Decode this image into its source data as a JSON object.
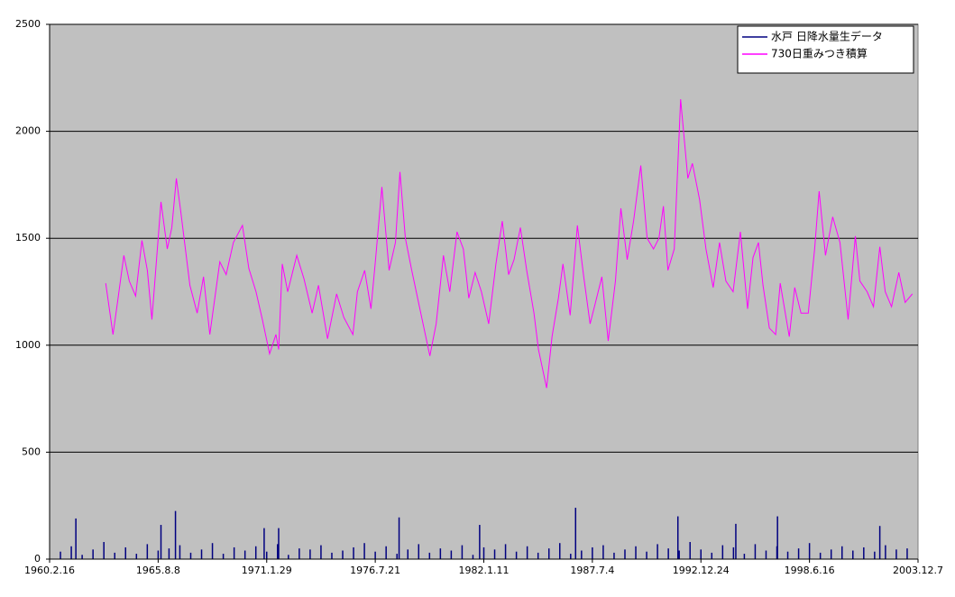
{
  "chart_data": {
    "type": "line",
    "xlim": [
      0,
      16000
    ],
    "xticks": [
      {
        "value": 0,
        "label": "1960.2.16"
      },
      {
        "value": 2000,
        "label": "1965.8.8"
      },
      {
        "value": 4000,
        "label": "1971.1.29"
      },
      {
        "value": 6000,
        "label": "1976.7.21"
      },
      {
        "value": 8000,
        "label": "1982.1.11"
      },
      {
        "value": 10000,
        "label": "1987.7.4"
      },
      {
        "value": 12000,
        "label": "1992.12.24"
      },
      {
        "value": 14000,
        "label": "1998.6.16"
      },
      {
        "value": 16000,
        "label": "2003.12.7"
      }
    ],
    "ylim": [
      0,
      2500
    ],
    "yticks": [
      0,
      500,
      1000,
      1500,
      2000,
      2500
    ],
    "grid": true,
    "legend": "top-right",
    "series": [
      {
        "name": "水戸 日降水量生データ",
        "color": "#000080",
        "type": "bar",
        "x": [
          200,
          400,
          600,
          800,
          1000,
          1200,
          1400,
          1600,
          1800,
          2000,
          2200,
          2400,
          2600,
          2800,
          3000,
          3200,
          3400,
          3600,
          3800,
          4000,
          4200,
          4400,
          4600,
          4800,
          5000,
          5200,
          5400,
          5600,
          5800,
          6000,
          6200,
          6400,
          6600,
          6800,
          7000,
          7200,
          7400,
          7600,
          7800,
          8000,
          8200,
          8400,
          8600,
          8800,
          9000,
          9200,
          9400,
          9600,
          9800,
          10000,
          10200,
          10400,
          10600,
          10800,
          11000,
          11200,
          11400,
          11600,
          11800,
          12000,
          12200,
          12400,
          12600,
          12800,
          13000,
          13200,
          13400,
          13600,
          13800,
          14000,
          14200,
          14400,
          14600,
          14800,
          15000,
          15200,
          15400,
          15600,
          15800,
          484,
          2052,
          2319,
          3953,
          4220,
          6439,
          7923,
          9691,
          11576,
          12643,
          13411,
          15296
        ],
        "values": [
          35,
          60,
          20,
          45,
          80,
          30,
          55,
          25,
          70,
          40,
          50,
          65,
          30,
          45,
          75,
          25,
          55,
          40,
          60,
          35,
          70,
          20,
          50,
          45,
          65,
          30,
          40,
          55,
          75,
          35,
          60,
          25,
          45,
          70,
          30,
          50,
          40,
          65,
          20,
          55,
          45,
          70,
          35,
          60,
          30,
          50,
          75,
          25,
          40,
          55,
          65,
          30,
          45,
          60,
          35,
          70,
          50,
          40,
          80,
          45,
          30,
          65,
          55,
          25,
          70,
          40,
          60,
          35,
          50,
          75,
          30,
          45,
          60,
          40,
          55,
          35,
          65,
          45,
          50,
          190,
          160,
          225,
          145,
          145,
          195,
          160,
          240,
          200,
          165,
          200,
          155
        ]
      },
      {
        "name": "730日重みつき積算",
        "color": "#ff00ff",
        "x": [
          1034,
          1168,
          1251,
          1368,
          1468,
          1585,
          1701,
          1801,
          1885,
          2052,
          2168,
          2252,
          2335,
          2419,
          2585,
          2719,
          2836,
          2952,
          3136,
          3253,
          3386,
          3553,
          3670,
          3803,
          3920,
          4053,
          4170,
          4220,
          4287,
          4387,
          4554,
          4687,
          4837,
          4954,
          5121,
          5288,
          5421,
          5588,
          5671,
          5805,
          5921,
          6005,
          6122,
          6255,
          6372,
          6455,
          6555,
          6672,
          6839,
          7006,
          7122,
          7256,
          7373,
          7506,
          7623,
          7723,
          7840,
          7956,
          8090,
          8223,
          8340,
          8457,
          8557,
          8674,
          8790,
          8924,
          9007,
          9157,
          9257,
          9374,
          9458,
          9591,
          9724,
          9841,
          9958,
          10058,
          10175,
          10292,
          10425,
          10525,
          10642,
          10759,
          10892,
          11009,
          11126,
          11226,
          11309,
          11392,
          11509,
          11626,
          11759,
          11843,
          11976,
          12093,
          12226,
          12343,
          12460,
          12593,
          12727,
          12860,
          12960,
          13060,
          13144,
          13261,
          13377,
          13461,
          13628,
          13728,
          13844,
          13978,
          14095,
          14178,
          14295,
          14428,
          14562,
          14712,
          14845,
          14929,
          15062,
          15179,
          15296,
          15396,
          15512,
          15646,
          15763,
          15896
        ],
        "values": [
          1290,
          1050,
          1200,
          1420,
          1300,
          1230,
          1490,
          1350,
          1120,
          1670,
          1450,
          1550,
          1780,
          1620,
          1280,
          1150,
          1320,
          1050,
          1390,
          1330,
          1480,
          1560,
          1360,
          1250,
          1120,
          960,
          1050,
          980,
          1380,
          1250,
          1420,
          1310,
          1150,
          1280,
          1030,
          1240,
          1130,
          1050,
          1250,
          1350,
          1170,
          1400,
          1740,
          1350,
          1480,
          1810,
          1500,
          1350,
          1150,
          950,
          1100,
          1420,
          1250,
          1530,
          1450,
          1220,
          1340,
          1250,
          1100,
          1380,
          1580,
          1330,
          1400,
          1550,
          1350,
          1150,
          980,
          800,
          1040,
          1220,
          1380,
          1140,
          1560,
          1320,
          1100,
          1200,
          1320,
          1020,
          1300,
          1640,
          1400,
          1580,
          1840,
          1500,
          1450,
          1500,
          1650,
          1350,
          1450,
          2150,
          1780,
          1850,
          1680,
          1450,
          1270,
          1480,
          1300,
          1250,
          1530,
          1170,
          1410,
          1480,
          1280,
          1080,
          1050,
          1290,
          1040,
          1270,
          1150,
          1150,
          1450,
          1720,
          1420,
          1600,
          1480,
          1120,
          1510,
          1300,
          1250,
          1180,
          1460,
          1250,
          1180,
          1340,
          1200,
          1240
        ]
      }
    ]
  }
}
